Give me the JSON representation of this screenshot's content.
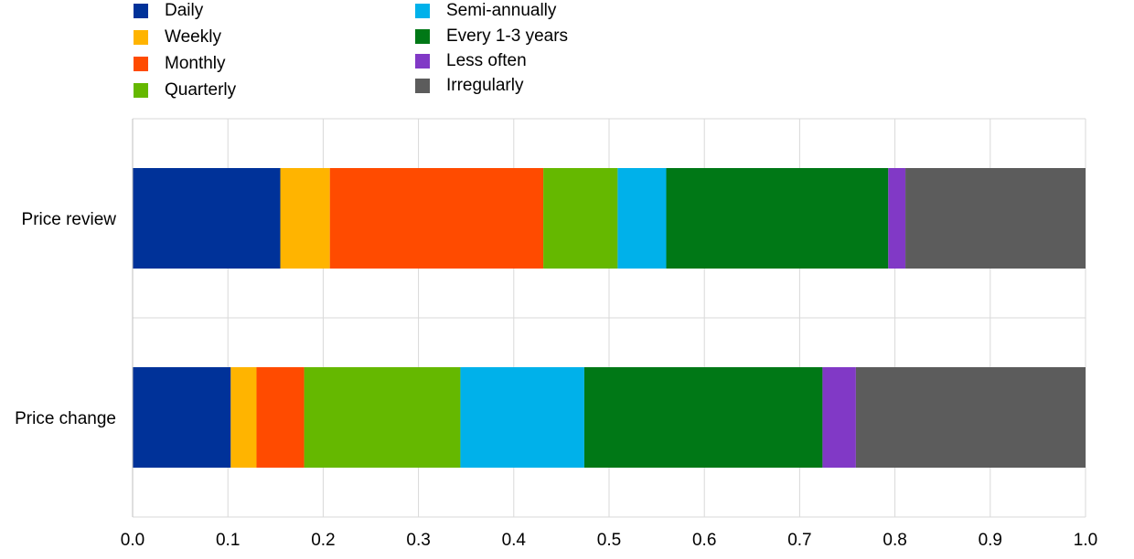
{
  "chart_data": {
    "type": "bar",
    "orientation": "horizontal",
    "stacked": true,
    "categories": [
      "Price review",
      "Price change"
    ],
    "series": [
      {
        "name": "Daily",
        "color": "#003299",
        "values": [
          0.155,
          0.103
        ]
      },
      {
        "name": "Weekly",
        "color": "#FFB400",
        "values": [
          0.052,
          0.027
        ]
      },
      {
        "name": "Monthly",
        "color": "#FF4B00",
        "values": [
          0.224,
          0.05
        ]
      },
      {
        "name": "Quarterly",
        "color": "#65B800",
        "values": [
          0.078,
          0.164
        ]
      },
      {
        "name": "Semi-annually",
        "color": "#00B1EA",
        "values": [
          0.051,
          0.13
        ]
      },
      {
        "name": "Every 1-3 years",
        "color": "#007816",
        "values": [
          0.233,
          0.25
        ]
      },
      {
        "name": "Less often",
        "color": "#8139C6",
        "values": [
          0.018,
          0.035
        ]
      },
      {
        "name": "Irregularly",
        "color": "#5C5C5C",
        "values": [
          0.189,
          0.241
        ]
      }
    ],
    "xlim": [
      0.0,
      1.0
    ],
    "xticks": [
      "0.0",
      "0.1",
      "0.2",
      "0.3",
      "0.4",
      "0.5",
      "0.6",
      "0.7",
      "0.8",
      "0.9",
      "1.0"
    ],
    "grid": true,
    "legend_position": "top"
  }
}
